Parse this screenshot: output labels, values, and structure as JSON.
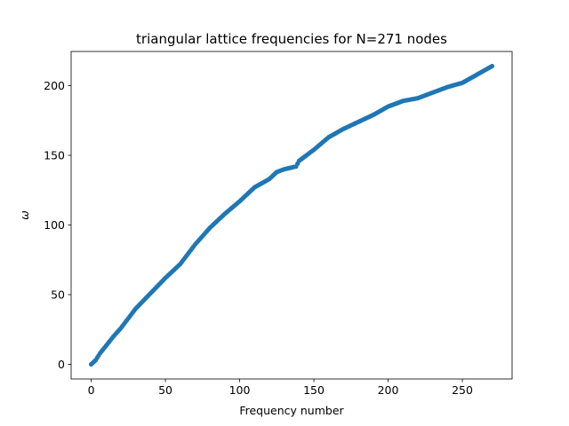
{
  "chart_data": {
    "type": "scatter",
    "title": "triangular lattice frequencies for N=271 nodes",
    "xlabel": "Frequency number",
    "ylabel": "ω",
    "xlim": [
      -13.5,
      283.5
    ],
    "ylim": [
      -10.5,
      224.5
    ],
    "xticks": [
      0,
      50,
      100,
      150,
      200,
      250
    ],
    "yticks": [
      0,
      50,
      100,
      150,
      200
    ],
    "grid": false,
    "legend": "none",
    "series_color": "#1f77b4",
    "series": [
      {
        "count": 271,
        "x_start": 0,
        "x_step": 1,
        "anchors": [
          [
            0,
            0
          ],
          [
            3,
            3
          ],
          [
            6,
            8
          ],
          [
            9,
            12
          ],
          [
            12,
            16
          ],
          [
            15,
            20
          ],
          [
            20,
            26
          ],
          [
            25,
            33
          ],
          [
            30,
            40
          ],
          [
            40,
            51
          ],
          [
            50,
            62
          ],
          [
            60,
            72
          ],
          [
            70,
            86
          ],
          [
            80,
            98
          ],
          [
            90,
            108
          ],
          [
            100,
            117
          ],
          [
            110,
            127
          ],
          [
            120,
            133
          ],
          [
            125,
            138
          ],
          [
            130,
            140
          ],
          [
            138,
            142
          ],
          [
            140,
            146
          ],
          [
            150,
            154
          ],
          [
            160,
            163
          ],
          [
            170,
            169
          ],
          [
            180,
            174
          ],
          [
            190,
            179
          ],
          [
            200,
            185
          ],
          [
            210,
            189
          ],
          [
            220,
            191
          ],
          [
            230,
            195
          ],
          [
            240,
            199
          ],
          [
            250,
            202
          ],
          [
            260,
            208
          ],
          [
            270,
            214
          ]
        ]
      }
    ]
  }
}
